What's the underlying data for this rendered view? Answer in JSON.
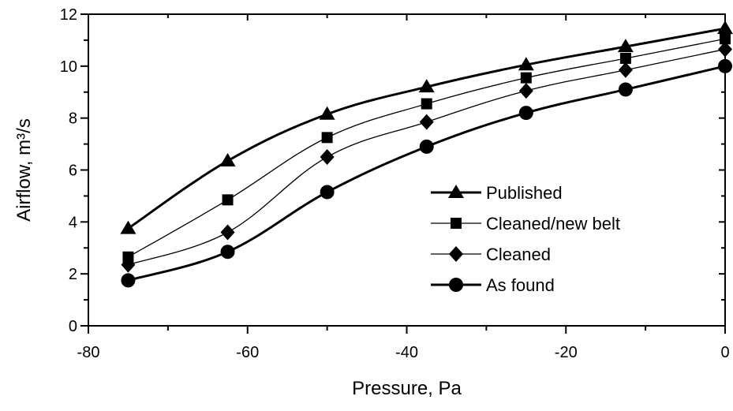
{
  "chart_data": {
    "type": "line",
    "xlabel": "Pressure, Pa",
    "ylabel": "Airflow, m³/s",
    "xlim": [
      -80,
      0
    ],
    "ylim": [
      0,
      12
    ],
    "xticks": [
      -80,
      -60,
      -40,
      -20,
      0
    ],
    "yticks": [
      0,
      2,
      4,
      6,
      8,
      10,
      12
    ],
    "x_tick_labels": [
      "-80",
      "-60",
      "-40",
      "-20",
      "0"
    ],
    "y_tick_labels": [
      "0",
      "2",
      "4",
      "6",
      "8",
      "10",
      "12"
    ],
    "grid": false,
    "legend_position": "right-center",
    "series": [
      {
        "name": "Published",
        "marker": "triangle",
        "x": [
          -75,
          -62.5,
          -50,
          -37.5,
          -25,
          -12.5,
          0
        ],
        "y": [
          3.75,
          6.35,
          8.15,
          9.2,
          10.05,
          10.75,
          11.45
        ]
      },
      {
        "name": "Cleaned/new belt",
        "marker": "square",
        "x": [
          -75,
          -62.5,
          -50,
          -37.5,
          -25,
          -12.5,
          0
        ],
        "y": [
          2.65,
          4.85,
          7.25,
          8.55,
          9.55,
          10.3,
          11.05
        ]
      },
      {
        "name": "Cleaned",
        "marker": "diamond",
        "x": [
          -75,
          -62.5,
          -50,
          -37.5,
          -25,
          -12.5,
          0
        ],
        "y": [
          2.35,
          3.6,
          6.5,
          7.85,
          9.05,
          9.85,
          10.65
        ]
      },
      {
        "name": "As found",
        "marker": "circle",
        "x": [
          -75,
          -62.5,
          -50,
          -37.5,
          -25,
          -12.5,
          0
        ],
        "y": [
          1.75,
          2.85,
          5.15,
          6.9,
          8.2,
          9.1,
          10.0
        ]
      }
    ]
  }
}
